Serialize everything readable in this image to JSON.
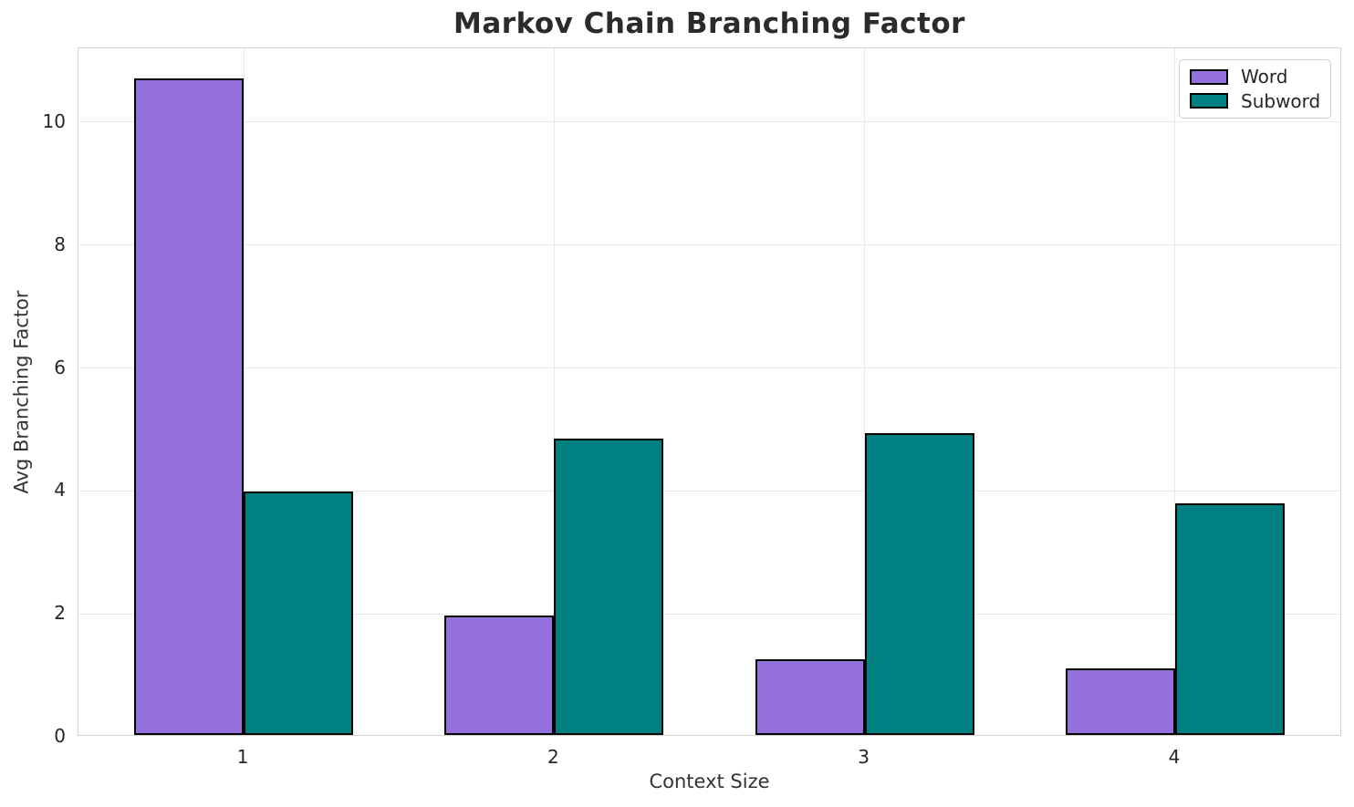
{
  "figure": {
    "title": "Markov Chain Branching Factor"
  },
  "chart_data": {
    "type": "bar",
    "title": "Markov Chain Branching Factor",
    "xlabel": "Context Size",
    "ylabel": "Avg Branching Factor",
    "categories": [
      "1",
      "2",
      "3",
      "4"
    ],
    "series": [
      {
        "name": "Word",
        "color": "#9370DB",
        "values": [
          10.68,
          1.95,
          1.23,
          1.09
        ]
      },
      {
        "name": "Subword",
        "color": "#008080",
        "values": [
          3.96,
          4.82,
          4.91,
          3.77
        ]
      }
    ],
    "ylim": [
      0,
      11.2
    ],
    "yticks": [
      0,
      2,
      4,
      6,
      8,
      10
    ],
    "grid": true,
    "legend_position": "upper right",
    "bar_edge_color": "#000000"
  },
  "colors": {
    "grid": "#e9e9e9",
    "spine": "#d4d4d4",
    "text": "#262626",
    "title_text": "#2b2b2b"
  }
}
